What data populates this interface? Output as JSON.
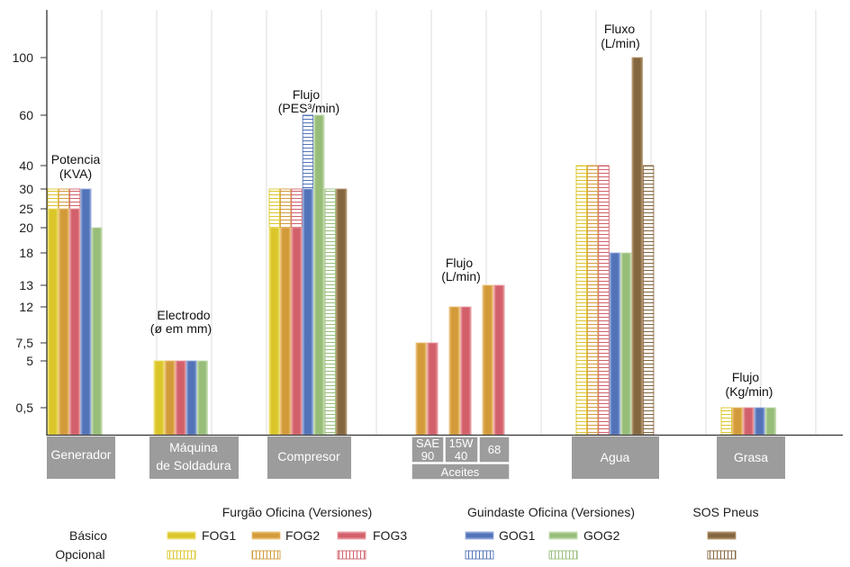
{
  "chart_data": {
    "type": "bar",
    "grid": "vertical",
    "y_ticks": [
      {
        "value": 100,
        "label": "100"
      },
      {
        "value": 60,
        "label": "60"
      },
      {
        "value": 40,
        "label": "40"
      },
      {
        "value": 30,
        "label": "30"
      },
      {
        "value": 25,
        "label": "25"
      },
      {
        "value": 20,
        "label": "20"
      },
      {
        "value": 18,
        "label": "18"
      },
      {
        "value": 13,
        "label": "13"
      },
      {
        "value": 12,
        "label": "12"
      },
      {
        "value": 7.5,
        "label": "7,5"
      },
      {
        "value": 5,
        "label": "5"
      },
      {
        "value": 0.5,
        "label": "0,5"
      }
    ],
    "series": [
      {
        "name": "FOG1",
        "color": "#dbc62a",
        "light": "#efe27a"
      },
      {
        "name": "FOG2",
        "color": "#d39a3a",
        "light": "#edc47e"
      },
      {
        "name": "FOG3",
        "color": "#d2606a",
        "light": "#eca2a7"
      },
      {
        "name": "GOG1",
        "color": "#5373b8",
        "light": "#9ab1df"
      },
      {
        "name": "GOG2",
        "color": "#97bd79",
        "light": "#c9dfb6"
      },
      {
        "name": "SOS Pneus",
        "color": "#84663f",
        "light": "#b69a74"
      }
    ],
    "categories": [
      {
        "label": [
          "Generador"
        ],
        "annotation": [
          "Potencia",
          "(KVA)"
        ],
        "bars": [
          {
            "series": "FOG1",
            "basico": 25,
            "opcional": 30
          },
          {
            "series": "FOG2",
            "basico": 25,
            "opcional": 30
          },
          {
            "series": "FOG3",
            "basico": 25,
            "opcional": 30
          },
          {
            "series": "GOG1",
            "basico": 30
          },
          {
            "series": "GOG2",
            "basico": 20
          }
        ]
      },
      {
        "label": [
          "Máquina",
          "de Soldadura"
        ],
        "annotation": [
          "Electrodo",
          "(ø em mm)"
        ],
        "bars": [
          {
            "series": "FOG1",
            "basico": 5
          },
          {
            "series": "FOG2",
            "basico": 5
          },
          {
            "series": "FOG3",
            "basico": 5
          },
          {
            "series": "GOG1",
            "basico": 5
          },
          {
            "series": "GOG2",
            "basico": 5
          }
        ]
      },
      {
        "label": [
          "Compresor"
        ],
        "annotation": [
          "Flujo",
          "(PES³/min)"
        ],
        "bars": [
          {
            "series": "FOG1",
            "basico": 20,
            "opcional": 30
          },
          {
            "series": "FOG2",
            "basico": 20,
            "opcional": 30
          },
          {
            "series": "FOG3",
            "basico": 20,
            "opcional": 30
          },
          {
            "series": "GOG1",
            "basico": 30,
            "opcional": 60
          },
          {
            "series": "GOG2",
            "basico": 60
          },
          {
            "series": "GOG2",
            "opcional": 30
          },
          {
            "series": "SOS Pneus",
            "basico": 30
          }
        ]
      },
      {
        "label": [
          "Aceites"
        ],
        "annotation": [
          "Flujo",
          "(L/min)"
        ],
        "subcategories": [
          {
            "label": [
              "SAE",
              "90"
            ],
            "bars": [
              {
                "series": "FOG2",
                "basico": 7.5
              },
              {
                "series": "FOG3",
                "basico": 7.5
              }
            ]
          },
          {
            "label": [
              "15W",
              "40"
            ],
            "bars": [
              {
                "series": "FOG2",
                "basico": 12
              },
              {
                "series": "FOG3",
                "basico": 12
              }
            ]
          },
          {
            "label": [
              "68"
            ],
            "bars": [
              {
                "series": "FOG2",
                "basico": 13
              },
              {
                "series": "FOG3",
                "basico": 13
              }
            ]
          }
        ]
      },
      {
        "label": [
          "Agua"
        ],
        "annotation": [
          "Fluxo",
          "(L/min)"
        ],
        "bars": [
          {
            "series": "FOG1",
            "opcional": 40
          },
          {
            "series": "FOG2",
            "opcional": 40
          },
          {
            "series": "FOG3",
            "opcional": 40
          },
          {
            "series": "GOG1",
            "basico": 18
          },
          {
            "series": "GOG2",
            "basico": 18
          },
          {
            "series": "SOS Pneus",
            "basico": 100
          },
          {
            "series": "SOS Pneus",
            "opcional": 40
          }
        ]
      },
      {
        "label": [
          "Grasa"
        ],
        "annotation": [
          "Flujo",
          "(Kg/min)"
        ],
        "bars": [
          {
            "series": "FOG1",
            "opcional": 0.5
          },
          {
            "series": "FOG2",
            "basico": 0.5
          },
          {
            "series": "FOG3",
            "basico": 0.5
          },
          {
            "series": "GOG1",
            "basico": 0.5
          },
          {
            "series": "GOG2",
            "basico": 0.5
          }
        ]
      }
    ]
  },
  "legend": {
    "position": "bottom",
    "row_labels": [
      "Básico",
      "Opcional"
    ],
    "groups": [
      "Furgão Oficina (Versiones)",
      "Guindaste Oficina (Versiones)",
      "SOS Pneus"
    ]
  }
}
